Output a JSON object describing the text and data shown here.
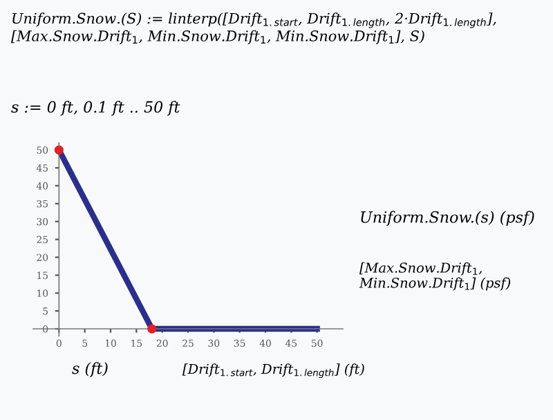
{
  "chart_data": {
    "type": "line",
    "title": "Uniform.Snow.(S) := linterp([Drift$_{1.start}$, Drift$_{1.length}$, 2·Drift$_{1.length}$], [Max.Snow.Drift$_{1}$, Min.Snow.Drift$_{1}$, Min.Snow.Drift$_{1}$], S)",
    "subtitle": "s := 0 ft, 0.1 ft .. 50 ft",
    "xlabel": "s (ft)",
    "ylabel": "Uniform.Snow.(s) (psf)",
    "annotations": [
      "[Drift$_{1.start}$, Drift$_{1.length}$] (ft)",
      "[Max.Snow.Drift$_{1}$, Min.Snow.Drift$_{1}$] (psf)"
    ],
    "series": [
      {
        "color": "#2b2f8a",
        "x": [
          0,
          18,
          50
        ],
        "values": [
          50,
          0,
          0
        ],
        "marker": "none"
      },
      {
        "type": "scatter",
        "color": "#e0202a",
        "x": [
          0,
          18
        ],
        "values": [
          50,
          0
        ],
        "marker": "circle"
      }
    ],
    "xlim": [
      -5,
      55
    ],
    "ylim": [
      -2,
      52
    ],
    "xticks": [
      0,
      5,
      10,
      15,
      20,
      25,
      30,
      35,
      40,
      45,
      50
    ],
    "yticks": [
      0,
      5,
      10,
      15,
      20,
      25,
      30,
      35,
      40,
      45,
      50
    ],
    "grid": false,
    "legend": false
  }
}
